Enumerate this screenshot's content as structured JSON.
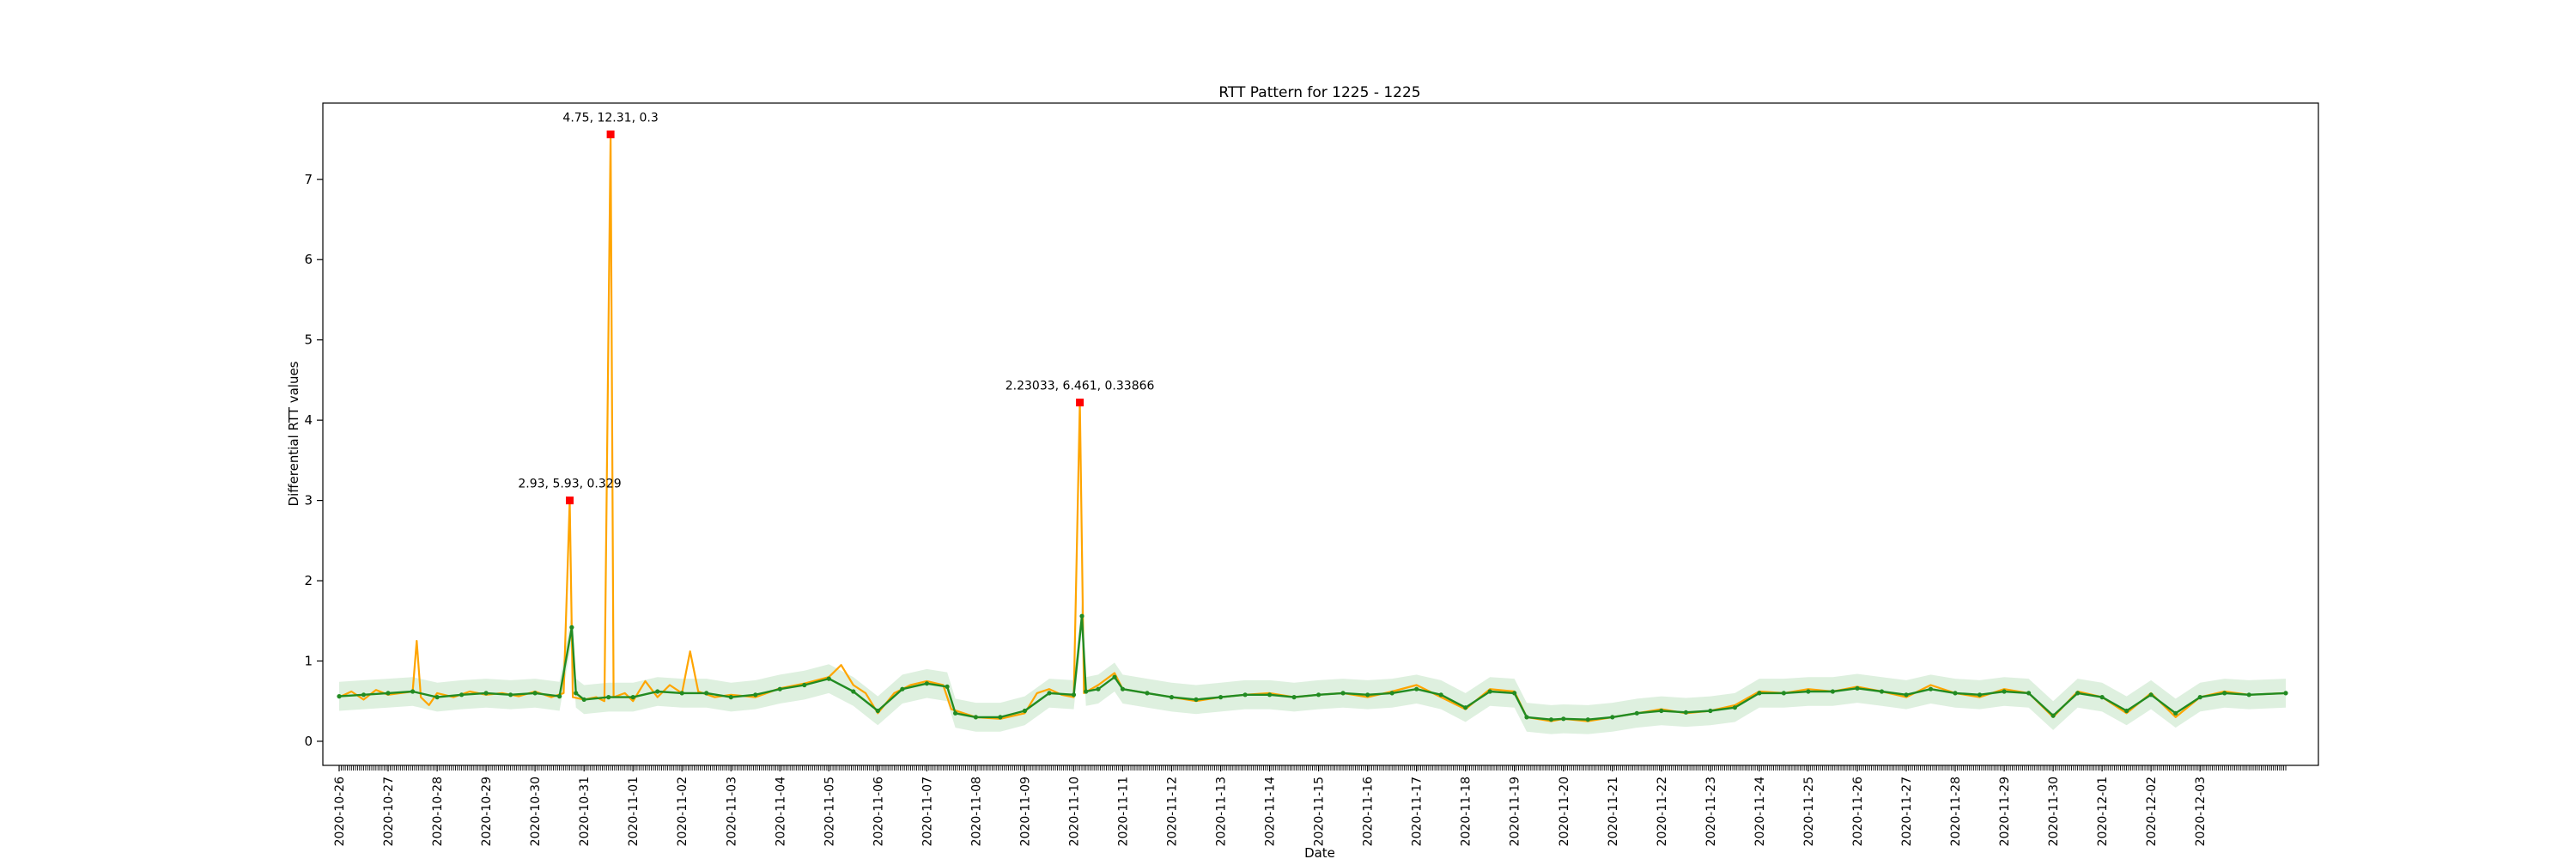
{
  "chart_data": {
    "type": "line",
    "title": "RTT Pattern for 1225 - 1225",
    "xlabel": "Date",
    "ylabel": "Differential RTT values",
    "x_tick_labels": [
      "2020-10-26",
      "2020-10-27",
      "2020-10-28",
      "2020-10-29",
      "2020-10-30",
      "2020-10-31",
      "2020-11-01",
      "2020-11-02",
      "2020-11-03",
      "2020-11-04",
      "2020-11-05",
      "2020-11-06",
      "2020-11-07",
      "2020-11-08",
      "2020-11-09",
      "2020-11-10",
      "2020-11-11",
      "2020-11-12",
      "2020-11-13",
      "2020-11-14",
      "2020-11-15",
      "2020-11-16",
      "2020-11-17",
      "2020-11-18",
      "2020-11-19",
      "2020-11-20",
      "2020-11-21",
      "2020-11-22",
      "2020-11-23",
      "2020-11-24",
      "2020-11-25",
      "2020-11-26",
      "2020-11-27",
      "2020-11-28",
      "2020-11-29",
      "2020-11-30",
      "2020-12-01",
      "2020-12-02",
      "2020-12-03"
    ],
    "y_ticks": [
      0,
      1,
      2,
      3,
      4,
      5,
      6,
      7
    ],
    "ylim": [
      -0.3,
      7.95
    ],
    "xlim": [
      "2020-10-25 16:00",
      "2020-12-05 10:00"
    ],
    "grid": false,
    "colors": {
      "raw": "#ffa500",
      "smoothed": "#228b22",
      "band": "#c8e6c9",
      "anomaly": "#ff0000"
    },
    "series": [
      {
        "type": "line",
        "color": "#ffa500",
        "points": [
          [
            "2020-10-26 00:00",
            0.55
          ],
          [
            "2020-10-26 06:00",
            0.62
          ],
          [
            "2020-10-26 12:00",
            0.52
          ],
          [
            "2020-10-26 18:00",
            0.64
          ],
          [
            "2020-10-27 00:00",
            0.58
          ],
          [
            "2020-10-27 06:00",
            0.6
          ],
          [
            "2020-10-27 12:00",
            0.62
          ],
          [
            "2020-10-27 14:00",
            1.25
          ],
          [
            "2020-10-27 16:00",
            0.55
          ],
          [
            "2020-10-27 20:00",
            0.45
          ],
          [
            "2020-10-28 00:00",
            0.6
          ],
          [
            "2020-10-28 08:00",
            0.55
          ],
          [
            "2020-10-28 16:00",
            0.62
          ],
          [
            "2020-10-29 00:00",
            0.58
          ],
          [
            "2020-10-29 08:00",
            0.6
          ],
          [
            "2020-10-29 16:00",
            0.56
          ],
          [
            "2020-10-30 00:00",
            0.62
          ],
          [
            "2020-10-30 08:00",
            0.55
          ],
          [
            "2020-10-30 14:00",
            0.6
          ],
          [
            "2020-10-30 17:00",
            3.0
          ],
          [
            "2020-10-30 18:30",
            0.55
          ],
          [
            "2020-10-31 00:00",
            0.52
          ],
          [
            "2020-10-31 06:00",
            0.55
          ],
          [
            "2020-10-31 10:00",
            0.5
          ],
          [
            "2020-10-31 13:00",
            7.56
          ],
          [
            "2020-10-31 14:30",
            0.55
          ],
          [
            "2020-10-31 20:00",
            0.6
          ],
          [
            "2020-11-01 00:00",
            0.5
          ],
          [
            "2020-11-01 06:00",
            0.75
          ],
          [
            "2020-11-01 12:00",
            0.55
          ],
          [
            "2020-11-01 18:00",
            0.7
          ],
          [
            "2020-11-02 00:00",
            0.6
          ],
          [
            "2020-11-02 04:00",
            1.12
          ],
          [
            "2020-11-02 08:00",
            0.62
          ],
          [
            "2020-11-02 16:00",
            0.55
          ],
          [
            "2020-11-03 00:00",
            0.58
          ],
          [
            "2020-11-03 12:00",
            0.55
          ],
          [
            "2020-11-04 00:00",
            0.66
          ],
          [
            "2020-11-04 12:00",
            0.72
          ],
          [
            "2020-11-05 00:00",
            0.8
          ],
          [
            "2020-11-05 06:00",
            0.95
          ],
          [
            "2020-11-05 12:00",
            0.7
          ],
          [
            "2020-11-05 18:00",
            0.6
          ],
          [
            "2020-11-06 00:00",
            0.35
          ],
          [
            "2020-11-06 08:00",
            0.6
          ],
          [
            "2020-11-06 16:00",
            0.7
          ],
          [
            "2020-11-07 00:00",
            0.75
          ],
          [
            "2020-11-07 08:00",
            0.7
          ],
          [
            "2020-11-07 12:00",
            0.4
          ],
          [
            "2020-11-08 00:00",
            0.3
          ],
          [
            "2020-11-08 12:00",
            0.28
          ],
          [
            "2020-11-09 00:00",
            0.35
          ],
          [
            "2020-11-09 06:00",
            0.6
          ],
          [
            "2020-11-09 12:00",
            0.65
          ],
          [
            "2020-11-09 18:00",
            0.58
          ],
          [
            "2020-11-10 00:00",
            0.55
          ],
          [
            "2020-11-10 03:00",
            4.22
          ],
          [
            "2020-11-10 05:00",
            0.6
          ],
          [
            "2020-11-10 12:00",
            0.7
          ],
          [
            "2020-11-10 20:00",
            0.85
          ],
          [
            "2020-11-11 00:00",
            0.65
          ],
          [
            "2020-11-11 12:00",
            0.6
          ],
          [
            "2020-11-12 00:00",
            0.55
          ],
          [
            "2020-11-12 12:00",
            0.5
          ],
          [
            "2020-11-13 00:00",
            0.55
          ],
          [
            "2020-11-13 12:00",
            0.58
          ],
          [
            "2020-11-14 00:00",
            0.6
          ],
          [
            "2020-11-14 12:00",
            0.55
          ],
          [
            "2020-11-15 00:00",
            0.58
          ],
          [
            "2020-11-15 12:00",
            0.6
          ],
          [
            "2020-11-16 00:00",
            0.55
          ],
          [
            "2020-11-16 12:00",
            0.62
          ],
          [
            "2020-11-17 00:00",
            0.7
          ],
          [
            "2020-11-17 12:00",
            0.55
          ],
          [
            "2020-11-18 00:00",
            0.4
          ],
          [
            "2020-11-18 12:00",
            0.65
          ],
          [
            "2020-11-19 00:00",
            0.62
          ],
          [
            "2020-11-19 06:00",
            0.3
          ],
          [
            "2020-11-19 18:00",
            0.25
          ],
          [
            "2020-11-20 00:00",
            0.28
          ],
          [
            "2020-11-20 12:00",
            0.25
          ],
          [
            "2020-11-21 00:00",
            0.3
          ],
          [
            "2020-11-21 12:00",
            0.35
          ],
          [
            "2020-11-22 00:00",
            0.4
          ],
          [
            "2020-11-22 12:00",
            0.35
          ],
          [
            "2020-11-23 00:00",
            0.38
          ],
          [
            "2020-11-23 12:00",
            0.45
          ],
          [
            "2020-11-24 00:00",
            0.62
          ],
          [
            "2020-11-24 12:00",
            0.6
          ],
          [
            "2020-11-25 00:00",
            0.65
          ],
          [
            "2020-11-25 12:00",
            0.62
          ],
          [
            "2020-11-26 00:00",
            0.68
          ],
          [
            "2020-11-26 12:00",
            0.62
          ],
          [
            "2020-11-27 00:00",
            0.55
          ],
          [
            "2020-11-27 12:00",
            0.7
          ],
          [
            "2020-11-28 00:00",
            0.6
          ],
          [
            "2020-11-28 12:00",
            0.55
          ],
          [
            "2020-11-29 00:00",
            0.65
          ],
          [
            "2020-11-29 12:00",
            0.6
          ],
          [
            "2020-11-30 00:00",
            0.3
          ],
          [
            "2020-11-30 12:00",
            0.62
          ],
          [
            "2020-12-01 00:00",
            0.55
          ],
          [
            "2020-12-01 12:00",
            0.35
          ],
          [
            "2020-12-02 00:00",
            0.6
          ],
          [
            "2020-12-02 12:00",
            0.3
          ],
          [
            "2020-12-03 00:00",
            0.55
          ],
          [
            "2020-12-03 12:00",
            0.62
          ],
          [
            "2020-12-04 00:00",
            0.58
          ],
          [
            "2020-12-04 18:00",
            0.6
          ]
        ]
      },
      {
        "type": "line",
        "color": "#228b22",
        "points": [
          [
            "2020-10-26 00:00",
            0.56
          ],
          [
            "2020-10-26 12:00",
            0.58
          ],
          [
            "2020-10-27 00:00",
            0.6
          ],
          [
            "2020-10-27 12:00",
            0.62
          ],
          [
            "2020-10-28 00:00",
            0.55
          ],
          [
            "2020-10-28 12:00",
            0.58
          ],
          [
            "2020-10-29 00:00",
            0.6
          ],
          [
            "2020-10-29 12:00",
            0.58
          ],
          [
            "2020-10-30 00:00",
            0.6
          ],
          [
            "2020-10-30 12:00",
            0.56
          ],
          [
            "2020-10-30 18:00",
            1.42
          ],
          [
            "2020-10-30 20:00",
            0.6
          ],
          [
            "2020-10-31 00:00",
            0.52
          ],
          [
            "2020-10-31 12:00",
            0.55
          ],
          [
            "2020-11-01 00:00",
            0.55
          ],
          [
            "2020-11-01 12:00",
            0.62
          ],
          [
            "2020-11-02 00:00",
            0.6
          ],
          [
            "2020-11-02 12:00",
            0.6
          ],
          [
            "2020-11-03 00:00",
            0.55
          ],
          [
            "2020-11-03 12:00",
            0.58
          ],
          [
            "2020-11-04 00:00",
            0.65
          ],
          [
            "2020-11-04 12:00",
            0.7
          ],
          [
            "2020-11-05 00:00",
            0.78
          ],
          [
            "2020-11-05 12:00",
            0.62
          ],
          [
            "2020-11-06 00:00",
            0.38
          ],
          [
            "2020-11-06 12:00",
            0.65
          ],
          [
            "2020-11-07 00:00",
            0.72
          ],
          [
            "2020-11-07 10:00",
            0.68
          ],
          [
            "2020-11-07 14:00",
            0.35
          ],
          [
            "2020-11-08 00:00",
            0.3
          ],
          [
            "2020-11-08 12:00",
            0.3
          ],
          [
            "2020-11-09 00:00",
            0.38
          ],
          [
            "2020-11-09 12:00",
            0.6
          ],
          [
            "2020-11-10 00:00",
            0.58
          ],
          [
            "2020-11-10 04:00",
            1.56
          ],
          [
            "2020-11-10 06:00",
            0.62
          ],
          [
            "2020-11-10 12:00",
            0.65
          ],
          [
            "2020-11-10 20:00",
            0.8
          ],
          [
            "2020-11-11 00:00",
            0.65
          ],
          [
            "2020-11-11 12:00",
            0.6
          ],
          [
            "2020-11-12 00:00",
            0.55
          ],
          [
            "2020-11-12 12:00",
            0.52
          ],
          [
            "2020-11-13 00:00",
            0.55
          ],
          [
            "2020-11-13 12:00",
            0.58
          ],
          [
            "2020-11-14 00:00",
            0.58
          ],
          [
            "2020-11-14 12:00",
            0.55
          ],
          [
            "2020-11-15 00:00",
            0.58
          ],
          [
            "2020-11-15 12:00",
            0.6
          ],
          [
            "2020-11-16 00:00",
            0.58
          ],
          [
            "2020-11-16 12:00",
            0.6
          ],
          [
            "2020-11-17 00:00",
            0.65
          ],
          [
            "2020-11-17 12:00",
            0.58
          ],
          [
            "2020-11-18 00:00",
            0.42
          ],
          [
            "2020-11-18 12:00",
            0.62
          ],
          [
            "2020-11-19 00:00",
            0.6
          ],
          [
            "2020-11-19 06:00",
            0.3
          ],
          [
            "2020-11-19 18:00",
            0.27
          ],
          [
            "2020-11-20 00:00",
            0.28
          ],
          [
            "2020-11-20 12:00",
            0.27
          ],
          [
            "2020-11-21 00:00",
            0.3
          ],
          [
            "2020-11-21 12:00",
            0.35
          ],
          [
            "2020-11-22 00:00",
            0.38
          ],
          [
            "2020-11-22 12:00",
            0.36
          ],
          [
            "2020-11-23 00:00",
            0.38
          ],
          [
            "2020-11-23 12:00",
            0.42
          ],
          [
            "2020-11-24 00:00",
            0.6
          ],
          [
            "2020-11-24 12:00",
            0.6
          ],
          [
            "2020-11-25 00:00",
            0.62
          ],
          [
            "2020-11-25 12:00",
            0.62
          ],
          [
            "2020-11-26 00:00",
            0.66
          ],
          [
            "2020-11-26 12:00",
            0.62
          ],
          [
            "2020-11-27 00:00",
            0.58
          ],
          [
            "2020-11-27 12:00",
            0.65
          ],
          [
            "2020-11-28 00:00",
            0.6
          ],
          [
            "2020-11-28 12:00",
            0.58
          ],
          [
            "2020-11-29 00:00",
            0.62
          ],
          [
            "2020-11-29 12:00",
            0.6
          ],
          [
            "2020-11-30 00:00",
            0.32
          ],
          [
            "2020-11-30 12:00",
            0.6
          ],
          [
            "2020-12-01 00:00",
            0.55
          ],
          [
            "2020-12-01 12:00",
            0.38
          ],
          [
            "2020-12-02 00:00",
            0.58
          ],
          [
            "2020-12-02 12:00",
            0.35
          ],
          [
            "2020-12-03 00:00",
            0.55
          ],
          [
            "2020-12-03 12:00",
            0.6
          ],
          [
            "2020-12-04 00:00",
            0.58
          ],
          [
            "2020-12-04 18:00",
            0.6
          ]
        ]
      }
    ],
    "anomalies": [
      {
        "x": "2020-10-30 17:00",
        "y": 3.0,
        "label": "2.93, 5.93, 0.329"
      },
      {
        "x": "2020-10-31 13:00",
        "y": 7.56,
        "label": "4.75, 12.31, 0.3"
      },
      {
        "x": "2020-11-10 03:00",
        "y": 4.22,
        "label": "2.23033, 6.461, 0.33866"
      }
    ]
  }
}
